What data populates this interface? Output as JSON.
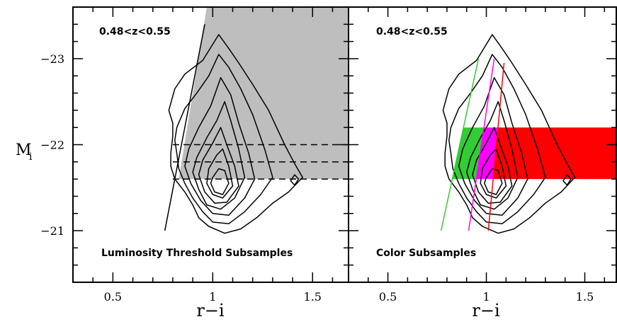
{
  "chart_data": [
    {
      "type": "contour",
      "panel": "left",
      "annotation_top": "0.48<z<0.55",
      "annotation_bottom": "Luminosity Threshold Subsamples",
      "xlabel": "r−i",
      "ylabel": "M",
      "ylabel_sub": "i",
      "xlim": [
        0.3,
        1.68
      ],
      "ylim": [
        -20.4,
        -23.6
      ],
      "x_ticks": [
        {
          "value": 0.5,
          "label": "0.5"
        },
        {
          "value": 1.0,
          "label": "1"
        },
        {
          "value": 1.5,
          "label": "1.5"
        }
      ],
      "y_ticks": [
        {
          "value": -23,
          "label": "−23"
        },
        {
          "value": -22,
          "label": "−22"
        },
        {
          "value": -21,
          "label": "−21"
        }
      ],
      "shaded_region": {
        "color": "#bebebe",
        "x_left_line": [
          [
            0.83,
            -21.6
          ],
          [
            0.97,
            -23.6
          ]
        ],
        "x_right": 1.68,
        "y_bottom": -21.6,
        "y_top": -23.6
      },
      "threshold_lines": {
        "style": "dashed",
        "m_values": [
          -22.0,
          -21.8,
          -21.6
        ],
        "x_range": [
          0.8,
          1.68
        ]
      },
      "cut_line": {
        "style": "solid",
        "points": [
          [
            0.76,
            -21.0
          ],
          [
            0.96,
            -23.4
          ]
        ]
      }
    },
    {
      "type": "contour",
      "panel": "right",
      "annotation_top": "0.48<z<0.55",
      "annotation_bottom": "Color Subsamples",
      "xlabel": "r−i",
      "xlim": [
        0.3,
        1.66
      ],
      "ylim": [
        -20.4,
        -23.6
      ],
      "x_ticks": [
        {
          "value": 0.5,
          "label": "0.5"
        },
        {
          "value": 1.0,
          "label": "1"
        },
        {
          "value": 1.5,
          "label": "1.5"
        }
      ],
      "y_ticks": [
        {
          "value": -23,
          "label": ""
        },
        {
          "value": -22,
          "label": ""
        },
        {
          "value": -21,
          "label": ""
        }
      ],
      "color_bands": {
        "m_range": [
          -21.6,
          -22.2
        ],
        "colors": [
          "#33cc33",
          "#ff00ff",
          "#ff0000"
        ]
      },
      "color_lines": [
        {
          "color": "#33cc33",
          "points": [
            [
              0.77,
              -21.0
            ],
            [
              0.96,
              -23.0
            ]
          ]
        },
        {
          "color": "#ff00ff",
          "points": [
            [
              0.91,
              -21.0
            ],
            [
              1.04,
              -23.0
            ]
          ]
        },
        {
          "color": "#ff0000",
          "points": [
            [
              1.01,
              -21.0
            ],
            [
              1.09,
              -22.95
            ]
          ]
        }
      ]
    }
  ],
  "contours": [
    {
      "level": 1,
      "points": [
        [
          0.78,
          -22.4
        ],
        [
          0.81,
          -22.65
        ],
        [
          0.86,
          -22.82
        ],
        [
          0.95,
          -22.98
        ],
        [
          1.03,
          -23.28
        ],
        [
          1.08,
          -23.12
        ],
        [
          1.13,
          -22.95
        ],
        [
          1.2,
          -22.7
        ],
        [
          1.28,
          -22.4
        ],
        [
          1.36,
          -22.0
        ],
        [
          1.41,
          -21.78
        ],
        [
          1.45,
          -21.62
        ],
        [
          1.38,
          -21.45
        ],
        [
          1.3,
          -21.32
        ],
        [
          1.22,
          -21.15
        ],
        [
          1.14,
          -21.02
        ],
        [
          1.06,
          -20.97
        ],
        [
          0.98,
          -21.05
        ],
        [
          0.93,
          -21.15
        ],
        [
          0.9,
          -21.3
        ],
        [
          0.86,
          -21.45
        ],
        [
          0.81,
          -21.6
        ],
        [
          0.79,
          -21.75
        ],
        [
          0.79,
          -21.9
        ],
        [
          0.8,
          -22.1
        ],
        [
          0.8,
          -22.25
        ]
      ]
    },
    {
      "level": 2,
      "points": [
        [
          0.82,
          -22.2
        ],
        [
          0.86,
          -22.42
        ],
        [
          0.92,
          -22.6
        ],
        [
          0.98,
          -22.8
        ],
        [
          1.03,
          -23.05
        ],
        [
          1.08,
          -22.9
        ],
        [
          1.14,
          -22.65
        ],
        [
          1.2,
          -22.35
        ],
        [
          1.26,
          -21.95
        ],
        [
          1.3,
          -21.62
        ],
        [
          1.24,
          -21.42
        ],
        [
          1.16,
          -21.22
        ],
        [
          1.08,
          -21.08
        ],
        [
          1.0,
          -21.1
        ],
        [
          0.95,
          -21.22
        ],
        [
          0.9,
          -21.38
        ],
        [
          0.86,
          -21.55
        ],
        [
          0.83,
          -21.72
        ],
        [
          0.82,
          -21.9
        ],
        [
          0.81,
          -22.05
        ]
      ]
    },
    {
      "level": 3,
      "points": [
        [
          0.88,
          -21.95
        ],
        [
          0.93,
          -22.2
        ],
        [
          0.99,
          -22.45
        ],
        [
          1.04,
          -22.78
        ],
        [
          1.09,
          -22.58
        ],
        [
          1.13,
          -22.25
        ],
        [
          1.18,
          -21.9
        ],
        [
          1.21,
          -21.6
        ],
        [
          1.16,
          -21.38
        ],
        [
          1.08,
          -21.18
        ],
        [
          1.0,
          -21.2
        ],
        [
          0.94,
          -21.35
        ],
        [
          0.89,
          -21.55
        ],
        [
          0.86,
          -21.75
        ]
      ]
    },
    {
      "level": 4,
      "points": [
        [
          0.92,
          -21.85
        ],
        [
          0.97,
          -22.08
        ],
        [
          1.02,
          -22.28
        ],
        [
          1.06,
          -22.5
        ],
        [
          1.09,
          -22.28
        ],
        [
          1.13,
          -21.95
        ],
        [
          1.16,
          -21.62
        ],
        [
          1.11,
          -21.38
        ],
        [
          1.04,
          -21.25
        ],
        [
          0.97,
          -21.3
        ],
        [
          0.93,
          -21.48
        ],
        [
          0.9,
          -21.68
        ]
      ]
    },
    {
      "level": 5,
      "points": [
        [
          0.95,
          -21.82
        ],
        [
          1.0,
          -22.02
        ],
        [
          1.04,
          -22.2
        ],
        [
          1.07,
          -22.0
        ],
        [
          1.11,
          -21.75
        ],
        [
          1.13,
          -21.52
        ],
        [
          1.07,
          -21.33
        ],
        [
          1.01,
          -21.32
        ],
        [
          0.96,
          -21.45
        ],
        [
          0.93,
          -21.65
        ]
      ]
    },
    {
      "level": 6,
      "points": [
        [
          0.98,
          -21.72
        ],
        [
          1.02,
          -21.88
        ],
        [
          1.05,
          -21.95
        ],
        [
          1.08,
          -21.75
        ],
        [
          1.1,
          -21.52
        ],
        [
          1.05,
          -21.38
        ],
        [
          1.0,
          -21.42
        ],
        [
          0.97,
          -21.55
        ]
      ]
    },
    {
      "level": 7,
      "points": [
        [
          1.0,
          -21.62
        ],
        [
          1.03,
          -21.72
        ],
        [
          1.06,
          -21.7
        ],
        [
          1.08,
          -21.55
        ],
        [
          1.05,
          -21.42
        ],
        [
          1.01,
          -21.45
        ],
        [
          0.99,
          -21.55
        ]
      ]
    },
    {
      "level": 8,
      "points": [
        [
          1.39,
          -21.58
        ],
        [
          1.41,
          -21.65
        ],
        [
          1.43,
          -21.6
        ],
        [
          1.41,
          -21.53
        ]
      ]
    }
  ],
  "colors": {
    "frame": "#000000",
    "shade": "#bebebe",
    "green": "#33cc33",
    "magenta": "#ff00ff",
    "red": "#ff0000"
  }
}
